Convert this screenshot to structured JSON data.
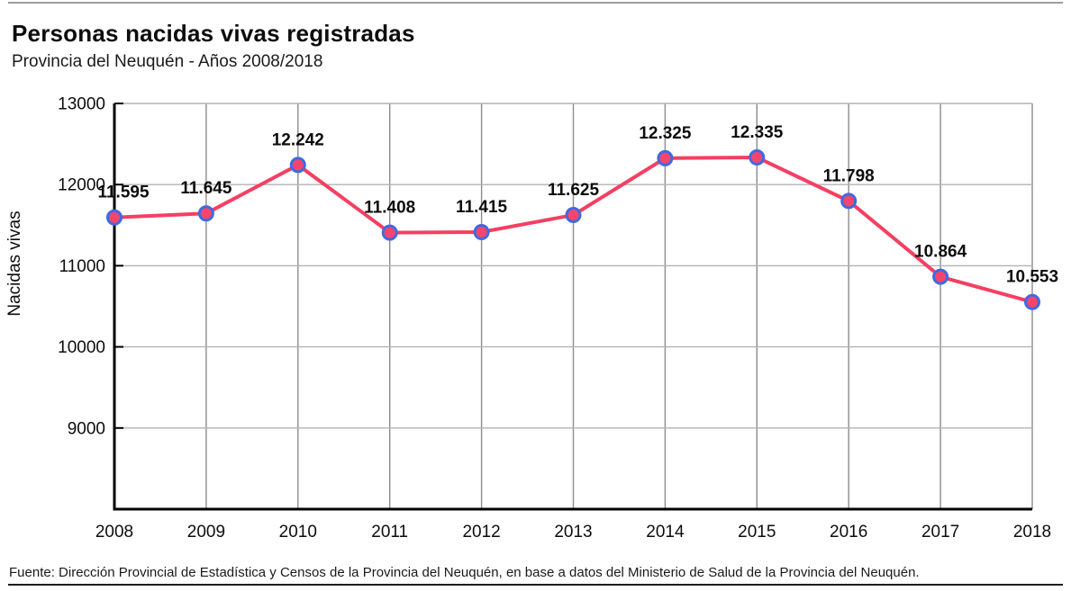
{
  "header": {
    "title": "Personas nacidas vivas registradas",
    "subtitle": "Provincia del Neuquén - Años 2008/2018"
  },
  "chart_data": {
    "type": "line",
    "title": "Personas nacidas vivas registradas",
    "subtitle": "Provincia del Neuquén - Años 2008/2018",
    "ylabel": "Nacidas vivas",
    "xlabel": "",
    "categories": [
      "2008",
      "2009",
      "2010",
      "2011",
      "2012",
      "2013",
      "2014",
      "2015",
      "2016",
      "2017",
      "2018"
    ],
    "values": [
      11595,
      11645,
      12242,
      11408,
      11415,
      11625,
      12325,
      12335,
      11798,
      10864,
      10553
    ],
    "point_labels": [
      "11.595",
      "11.645",
      "12.242",
      "11.408",
      "11.415",
      "11.625",
      "12.325",
      "12.335",
      "11.798",
      "10.864",
      "10.553"
    ],
    "yticks": [
      13000,
      12000,
      11000,
      10000,
      9000
    ],
    "ytick_labels": [
      "13000",
      "12000",
      "11000",
      "10000",
      "9000"
    ],
    "ylim": [
      8000,
      13000
    ],
    "grid": true,
    "legend": "none",
    "colors": {
      "line": "#f43f63",
      "marker_fill": "#f4466d",
      "marker_stroke": "#4169e1",
      "grid_vertical": "#8c8c8c",
      "grid_horizontal": "#b3b3b3",
      "axis": "#000000",
      "label_text": "#0d0d0d"
    }
  },
  "footer": {
    "source": "Fuente: Dirección Provincial de Estadística y Censos de la Provincia del Neuquén, en base a datos del Ministerio de Salud de la Provincia del Neuquén."
  }
}
